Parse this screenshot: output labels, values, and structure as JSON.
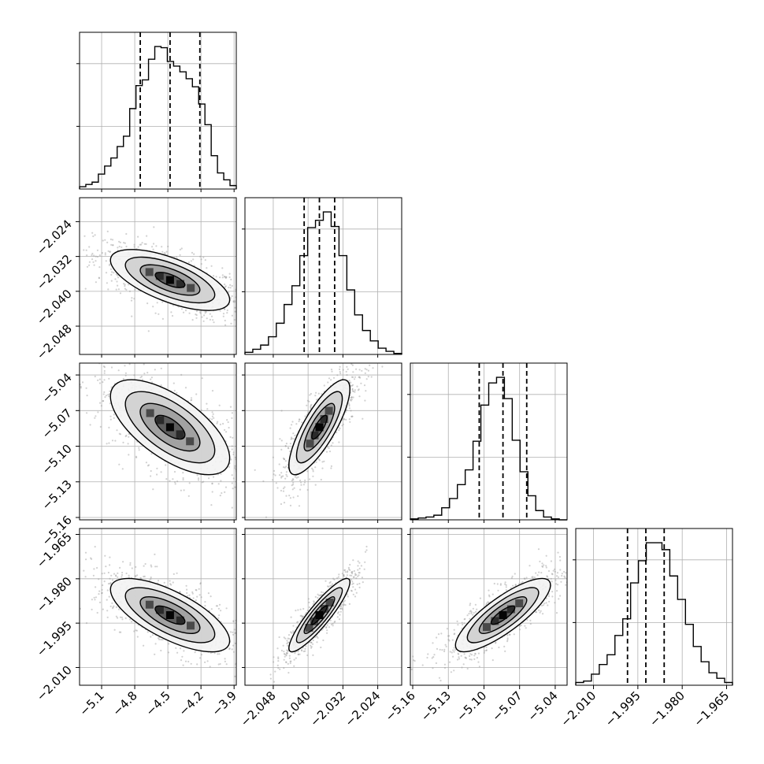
{
  "chart_data": {
    "type": "corner",
    "grid": true,
    "parameters": [
      {
        "index": 0,
        "quantiles": [
          -4.75,
          -4.48,
          -4.21
        ],
        "range": [
          -5.3,
          -3.88
        ],
        "ticks": [
          -5.1,
          -4.8,
          -4.5,
          -4.2,
          -3.9
        ],
        "tick_labels": [
          "−5.1",
          "−4.8",
          "−4.5",
          "−4.2",
          "−3.9"
        ]
      },
      {
        "index": 1,
        "quantiles": [
          -2.0409,
          -2.0374,
          -2.0339
        ],
        "range": [
          -2.0545,
          -2.0185
        ],
        "ticks": [
          -2.048,
          -2.04,
          -2.032,
          -2.024
        ],
        "tick_labels": [
          "−2.048",
          "−2.040",
          "−2.032",
          "−2.024"
        ]
      },
      {
        "index": 2,
        "quantiles": [
          -5.104,
          -5.084,
          -5.064
        ],
        "range": [
          -5.162,
          -5.03
        ],
        "ticks": [
          -5.16,
          -5.13,
          -5.1,
          -5.07,
          -5.04
        ],
        "tick_labels": [
          "−5.16",
          "−5.13",
          "−5.10",
          "−5.07",
          "−5.04"
        ]
      },
      {
        "index": 3,
        "quantiles": [
          -1.9985,
          -1.9923,
          -1.9861
        ],
        "range": [
          -2.016,
          -1.963
        ],
        "ticks": [
          -2.01,
          -1.995,
          -1.98,
          -1.965
        ],
        "tick_labels": [
          "−2.010",
          "−1.995",
          "−1.980",
          "−1.965"
        ]
      }
    ],
    "histograms": [
      {
        "param": 0,
        "counts": [
          2,
          4,
          6,
          13,
          20,
          27,
          37,
          46,
          70,
          90,
          95,
          113,
          124,
          123,
          111,
          107,
          102,
          96,
          89,
          74,
          56,
          29,
          14,
          8,
          3
        ]
      },
      {
        "param": 1,
        "counts": [
          2,
          5,
          9,
          17,
          30,
          48,
          66,
          95,
          122,
          129,
          137,
          123,
          95,
          62,
          38,
          23,
          13,
          6,
          3,
          1
        ]
      },
      {
        "param": 2,
        "counts": [
          1,
          2,
          3,
          5,
          13,
          23,
          38,
          54,
          85,
          124,
          148,
          154,
          131,
          86,
          52,
          26,
          10,
          3,
          1,
          0
        ]
      },
      {
        "param": 3,
        "counts": [
          2,
          3,
          8,
          15,
          22,
          36,
          48,
          74,
          90,
          103,
          103,
          98,
          79,
          62,
          44,
          28,
          17,
          9,
          5,
          2
        ]
      }
    ],
    "pairs": [
      {
        "x_param": 0,
        "y_param": 1,
        "correlation": -0.65
      },
      {
        "x_param": 0,
        "y_param": 2,
        "correlation": -0.65
      },
      {
        "x_param": 1,
        "y_param": 2,
        "correlation": 0.8
      },
      {
        "x_param": 0,
        "y_param": 3,
        "correlation": -0.7
      },
      {
        "x_param": 1,
        "y_param": 3,
        "correlation": 0.9
      },
      {
        "x_param": 2,
        "y_param": 3,
        "correlation": 0.82
      }
    ],
    "contour_levels_sigma": [
      0.5,
      1.0,
      1.5,
      2.0
    ],
    "colors": {
      "line": "#000000",
      "scatter": "#9a9a9a",
      "grid": "#b0b0b0",
      "fill_dark": "#000000"
    }
  }
}
